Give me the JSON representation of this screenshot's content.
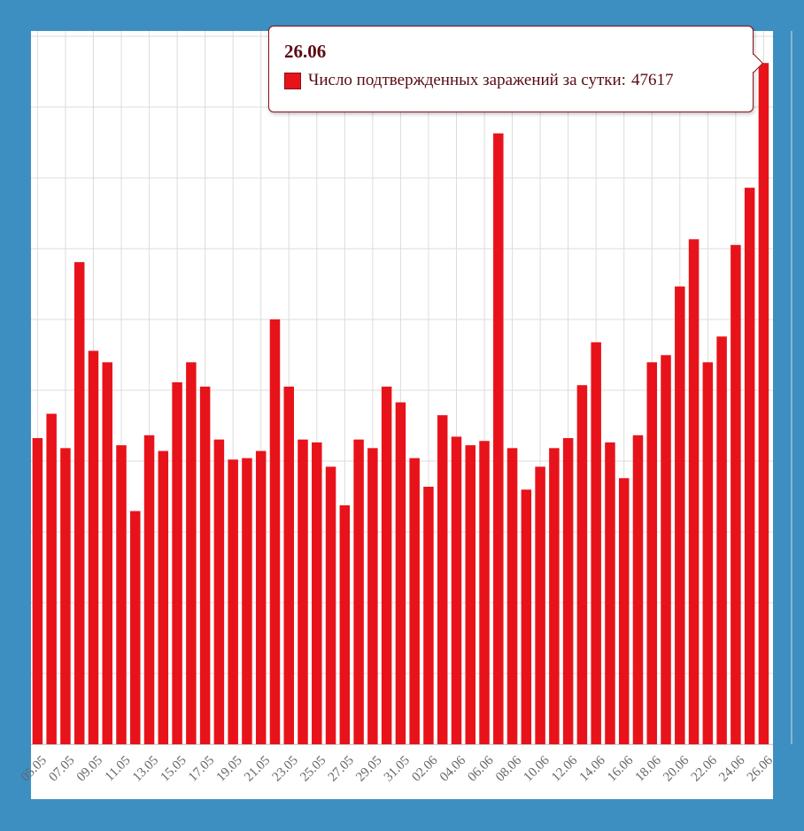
{
  "tooltip": {
    "date": "26.06",
    "series_label": "Число подтвержденных заражений за сутки:",
    "value": "47617"
  },
  "colors": {
    "bar": "#e8131a",
    "grid": "#dcdcdc",
    "tick_text": "#666666",
    "tooltip_border": "#8b0f1a",
    "background": "#3d8fc2"
  },
  "chart_data": {
    "type": "bar",
    "title": "",
    "xlabel": "",
    "ylabel": "",
    "categories": [
      "05.05",
      "06.05",
      "07.05",
      "08.05",
      "09.05",
      "10.05",
      "11.05",
      "12.05",
      "13.05",
      "14.05",
      "15.05",
      "16.05",
      "17.05",
      "18.05",
      "19.05",
      "20.05",
      "21.05",
      "22.05",
      "23.05",
      "24.05",
      "25.05",
      "26.05",
      "27.05",
      "28.05",
      "29.05",
      "30.05",
      "31.05",
      "01.06",
      "02.06",
      "03.06",
      "04.06",
      "05.06",
      "06.06",
      "07.06",
      "08.06",
      "09.06",
      "10.06",
      "11.06",
      "12.06",
      "13.06",
      "14.06",
      "15.06",
      "16.06",
      "17.06",
      "18.06",
      "19.06",
      "20.06",
      "21.06",
      "22.06",
      "23.06",
      "24.06",
      "25.06",
      "26.06"
    ],
    "tick_labels": [
      "05.05",
      "07.05",
      "09.05",
      "11.05",
      "13.05",
      "15.05",
      "17.05",
      "19.05",
      "21.05",
      "23.05",
      "25.05",
      "27.05",
      "29.05",
      "31.05",
      "02.06",
      "04.06",
      "06.06",
      "08.06",
      "10.06",
      "12.06",
      "14.06",
      "16.06",
      "18.06",
      "20.06",
      "22.06",
      "24.06",
      "26.06"
    ],
    "series": [
      {
        "name": "Число подтвержденных заражений за сутки",
        "values": [
          21400,
          23100,
          20700,
          33700,
          27500,
          26700,
          20900,
          16300,
          21600,
          20500,
          25300,
          26700,
          25000,
          21300,
          19900,
          20000,
          20500,
          29700,
          25000,
          21300,
          21100,
          19400,
          16700,
          21300,
          20700,
          25000,
          23900,
          20000,
          18000,
          23000,
          21500,
          20900,
          21200,
          42700,
          20700,
          17800,
          19400,
          20700,
          21400,
          25100,
          28100,
          21100,
          18600,
          21600,
          26700,
          27200,
          32000,
          35300,
          26700,
          28500,
          34900,
          38900,
          47617
        ]
      }
    ],
    "ylim": [
      0,
      48000
    ],
    "grid": true,
    "legend": "none"
  }
}
